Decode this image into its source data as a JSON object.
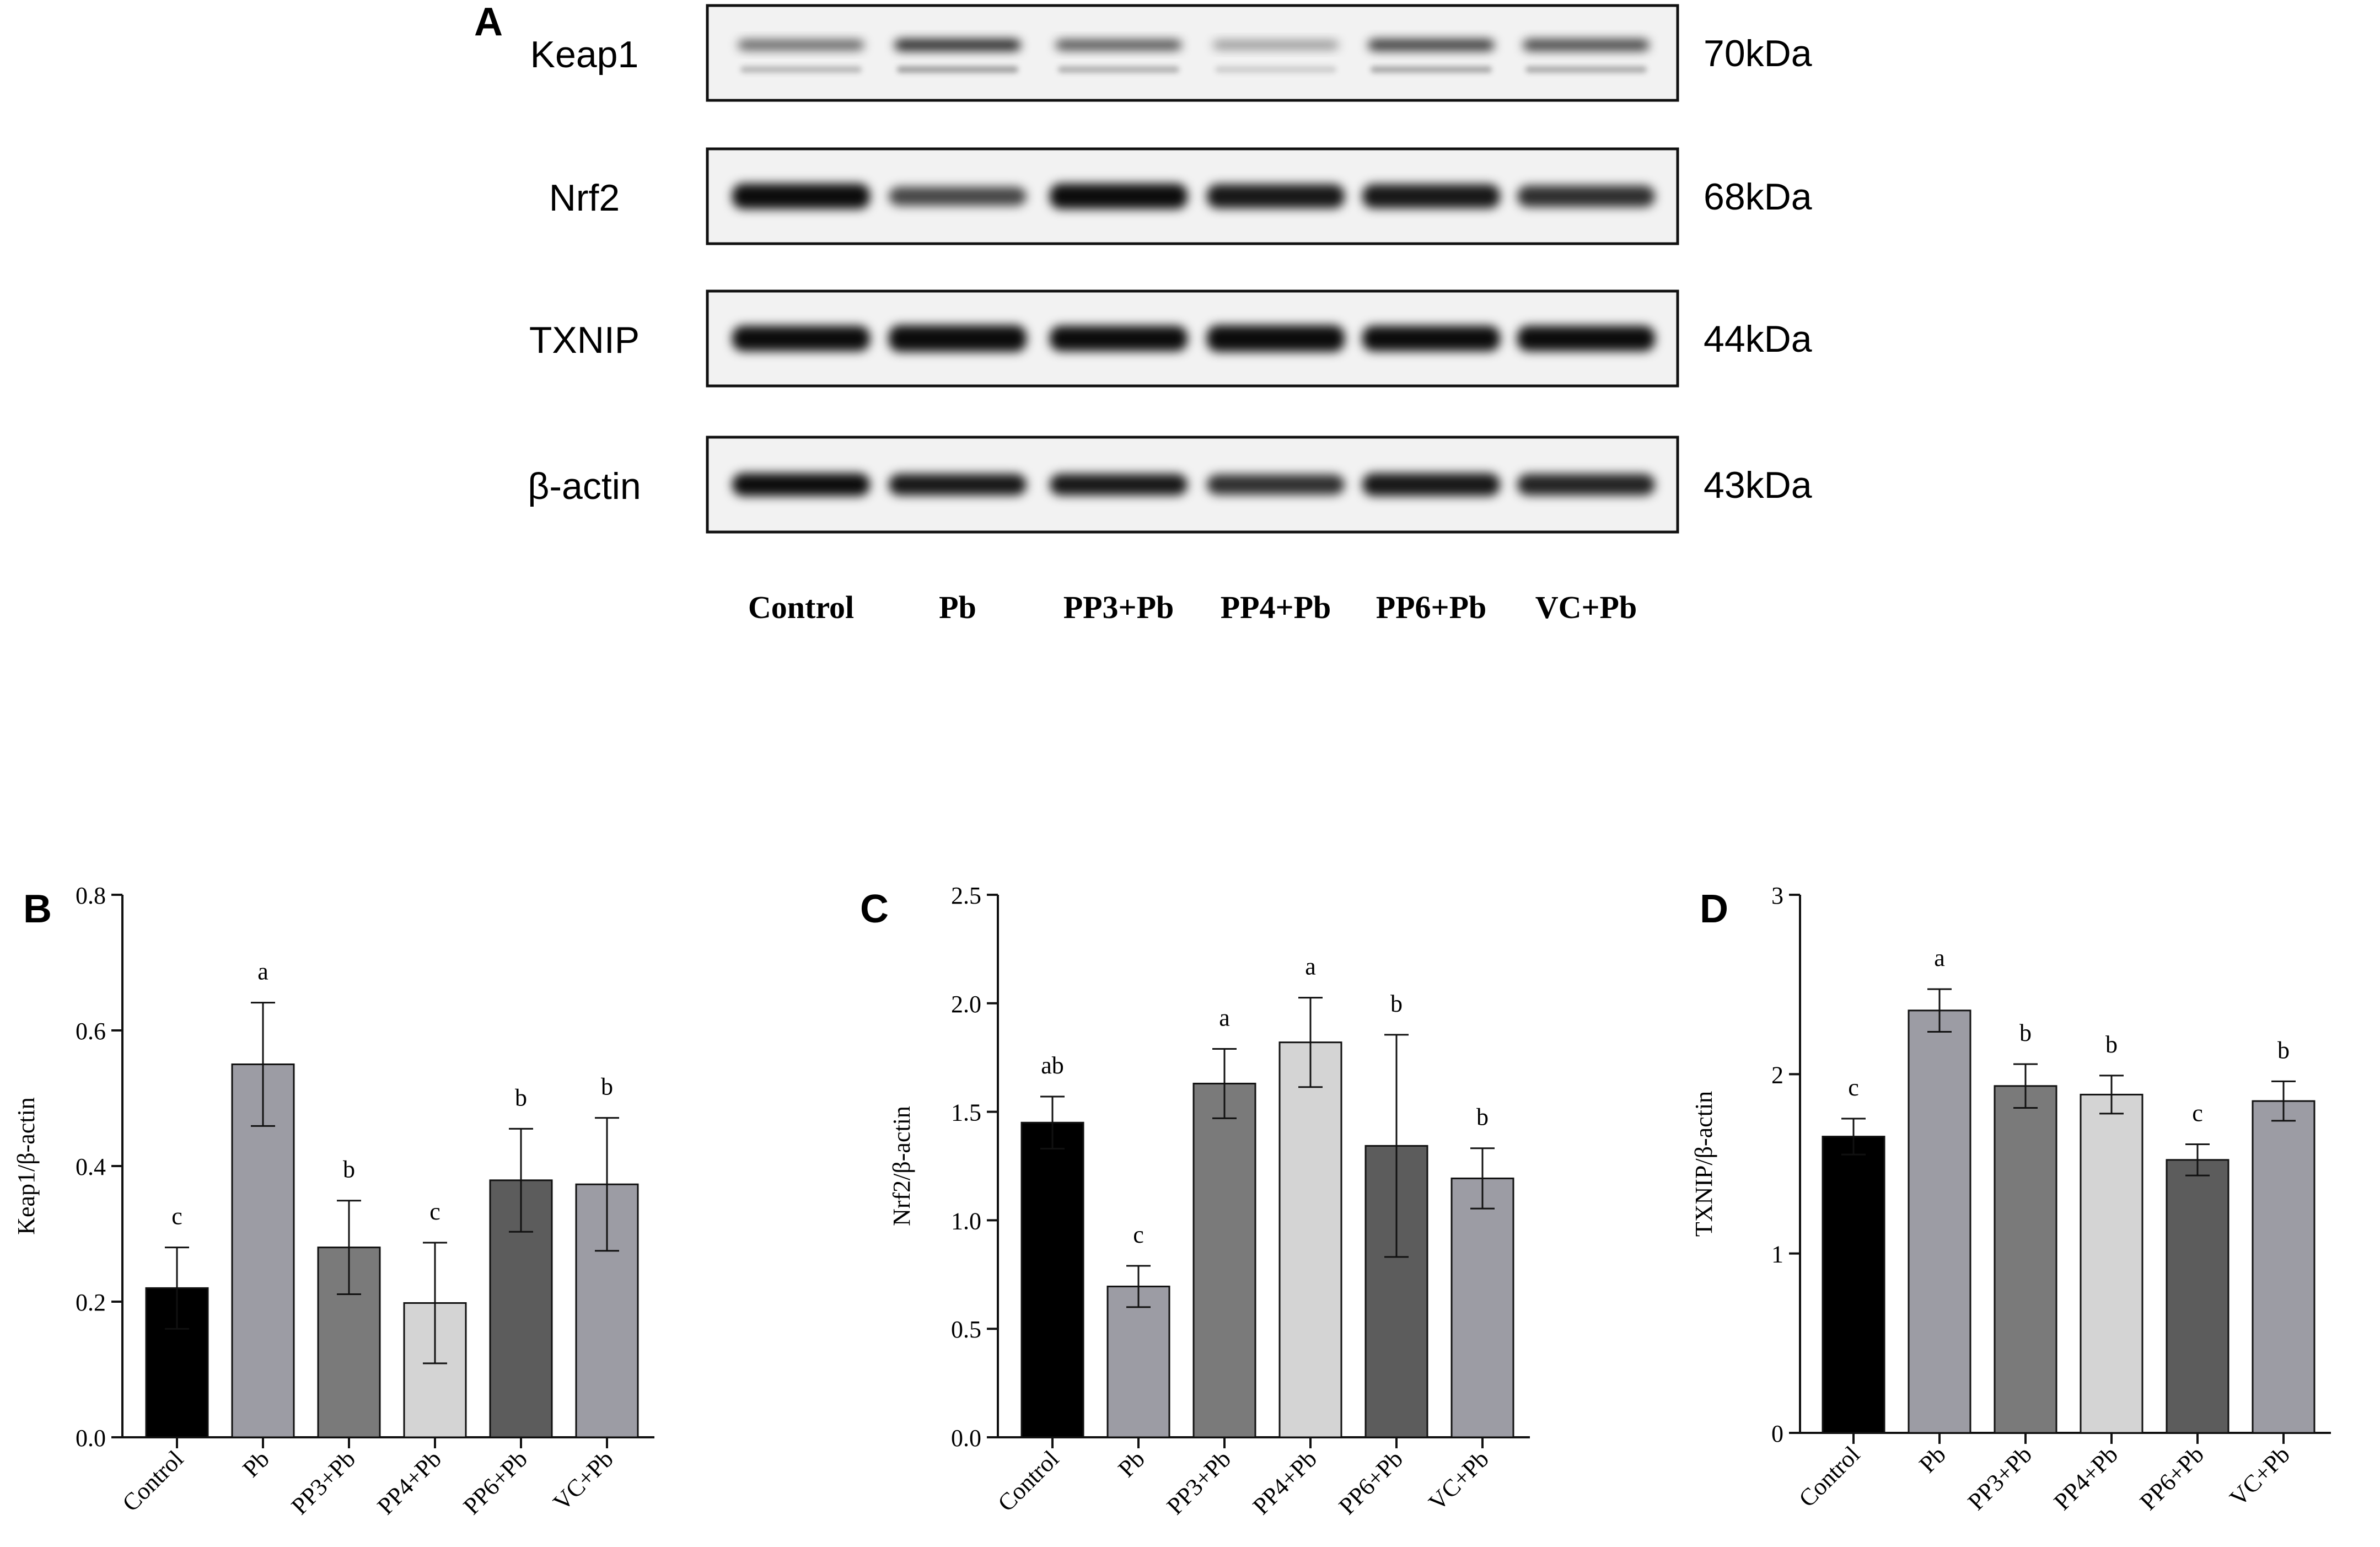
{
  "panel_a": {
    "letter": "A",
    "proteins": [
      {
        "name": "Keap1",
        "size": "70kDa",
        "band_intensity": [
          0.7,
          1.0,
          0.8,
          0.45,
          0.9,
          0.85
        ],
        "band_thickness": [
          0.6,
          0.7,
          0.6,
          0.5,
          0.7,
          0.7
        ],
        "double_band": true
      },
      {
        "name": "Nrf2",
        "size": "68kDa",
        "band_intensity": [
          1.0,
          0.75,
          1.0,
          0.95,
          0.95,
          0.85
        ],
        "band_thickness": [
          1.0,
          0.75,
          1.0,
          0.95,
          0.95,
          0.85
        ],
        "double_band": false
      },
      {
        "name": "TXNIP",
        "size": "44kDa",
        "band_intensity": [
          1.0,
          1.0,
          1.0,
          1.0,
          1.0,
          1.0
        ],
        "band_thickness": [
          1.0,
          1.05,
          1.0,
          1.05,
          1.0,
          1.0
        ],
        "double_band": false
      },
      {
        "name": "β-actin",
        "size": "43kDa",
        "band_intensity": [
          1.0,
          0.95,
          0.95,
          0.85,
          0.95,
          0.9
        ],
        "band_thickness": [
          0.9,
          0.85,
          0.85,
          0.8,
          0.9,
          0.85
        ],
        "double_band": false
      }
    ],
    "lanes": [
      "Control",
      "Pb",
      "PP3+Pb",
      "PP4+Pb",
      "PP6+Pb",
      "VC+Pb"
    ]
  },
  "chart_data": [
    {
      "type": "bar",
      "panel": "B",
      "ylabel": "Keap1/β-actin",
      "categories": [
        "Control",
        "Pb",
        "PP3+Pb",
        "PP4+Pb",
        "PP6+Pb",
        "VC+Pb"
      ],
      "values": [
        0.22,
        0.55,
        0.28,
        0.198,
        0.379,
        0.373
      ],
      "errors": [
        0.06,
        0.091,
        0.069,
        0.089,
        0.076,
        0.098
      ],
      "significance": [
        "c",
        "a",
        "b",
        "c",
        "b",
        "b"
      ],
      "ylim": [
        0,
        0.8
      ],
      "yticks": [
        "0.0",
        "0.2",
        "0.4",
        "0.6",
        "0.8"
      ]
    },
    {
      "type": "bar",
      "panel": "C",
      "ylabel": "Nrf2/β-actin",
      "categories": [
        "Control",
        "Pb",
        "PP3+Pb",
        "PP4+Pb",
        "PP6+Pb",
        "VC+Pb"
      ],
      "values": [
        1.45,
        0.695,
        1.63,
        1.82,
        1.343,
        1.193
      ],
      "errors": [
        0.12,
        0.095,
        0.16,
        0.206,
        0.512,
        0.139
      ],
      "significance": [
        "ab",
        "c",
        "a",
        "a",
        "b",
        "b"
      ],
      "ylim": [
        0,
        2.5
      ],
      "yticks": [
        "0.0",
        "0.5",
        "1.0",
        "1.5",
        "2.0",
        "2.5"
      ]
    },
    {
      "type": "bar",
      "panel": "D",
      "ylabel": "TXNIP/β-actin",
      "categories": [
        "Control",
        "Pb",
        "PP3+Pb",
        "PP4+Pb",
        "PP6+Pb",
        "VC+Pb"
      ],
      "values": [
        1.652,
        2.355,
        1.934,
        1.886,
        1.522,
        1.85
      ],
      "errors": [
        0.1,
        0.119,
        0.122,
        0.106,
        0.087,
        0.11
      ],
      "significance": [
        "c",
        "a",
        "b",
        "b",
        "c",
        "b"
      ],
      "ylim": [
        0,
        3
      ],
      "yticks": [
        "0",
        "1",
        "2",
        "3"
      ]
    }
  ],
  "bar_colors": [
    "#000000",
    "#9c9ca4",
    "#7a7a7a",
    "#d4d4d4",
    "#5c5c5c",
    "#9c9ca4"
  ]
}
